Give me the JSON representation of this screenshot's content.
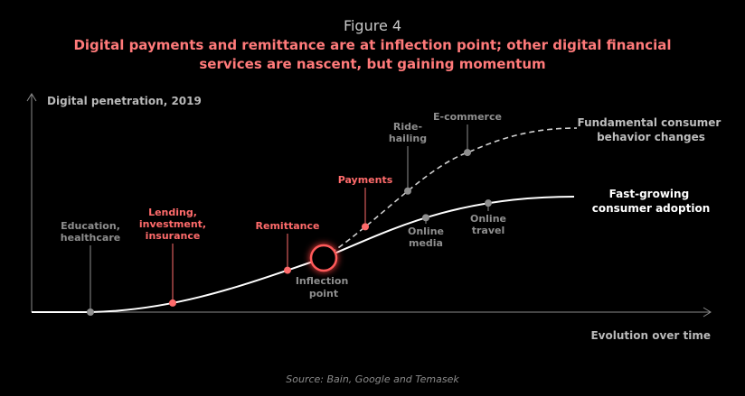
{
  "header": {
    "figure_label": "Figure 4",
    "title_line1": "Digital payments and remittance are at inflection point; other digital financial",
    "title_line2": "services are nascent, but gaining momentum"
  },
  "footer": {
    "source": "Source: Bain, Google and Temasek"
  },
  "colors": {
    "red": "#ff6b6b",
    "grey": "#8e8e8e",
    "white": "#ffffff"
  },
  "chart_data": {
    "type": "line",
    "ylabel": "Digital penetration, 2019",
    "xlabel": "Evolution over time",
    "series": [
      {
        "name": "Fast-growing consumer adoption",
        "style": "solid",
        "name_lines": [
          "Fast-growing",
          "consumer adoption"
        ]
      },
      {
        "name": "Fundamental consumer behavior changes",
        "style": "dashed",
        "name_lines": [
          "Fundamental consumer",
          "behavior changes"
        ]
      }
    ],
    "inflection": {
      "label_lines": [
        "Inflection",
        "point"
      ]
    },
    "points": [
      {
        "id": "education-healthcare",
        "series": 0,
        "color": "grey",
        "label_lines": [
          "Education,",
          "healthcare"
        ]
      },
      {
        "id": "lending",
        "series": 0,
        "color": "red",
        "label_lines": [
          "Lending,",
          "investment,",
          "insurance"
        ]
      },
      {
        "id": "remittance",
        "series": 0,
        "color": "red",
        "label_lines": [
          "Remittance"
        ]
      },
      {
        "id": "payments",
        "series": 1,
        "color": "red",
        "label_lines": [
          "Payments"
        ]
      },
      {
        "id": "ride-hailing",
        "series": 1,
        "color": "grey",
        "label_lines": [
          "Ride-",
          "hailing"
        ]
      },
      {
        "id": "e-commerce",
        "series": 1,
        "color": "grey",
        "label_lines": [
          "E-commerce"
        ]
      },
      {
        "id": "online-media",
        "series": 0,
        "color": "grey",
        "label_lines": [
          "Online",
          "media"
        ]
      },
      {
        "id": "online-travel",
        "series": 0,
        "color": "grey",
        "label_lines": [
          "Online",
          "travel"
        ]
      }
    ]
  }
}
